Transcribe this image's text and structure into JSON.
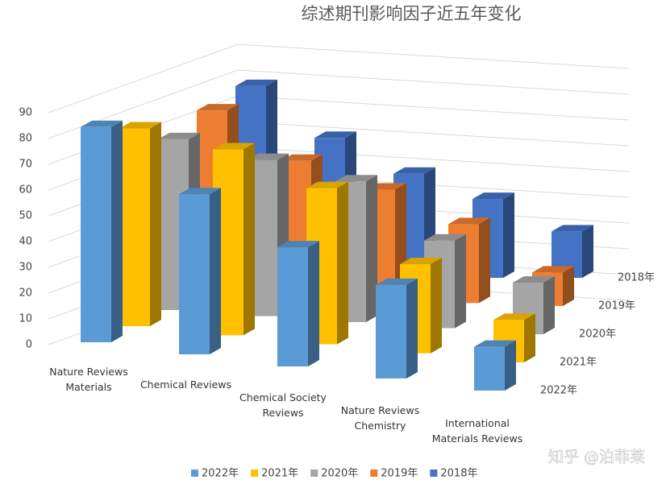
{
  "chart_data": {
    "type": "bar3d",
    "title": "综述期刊影响因子近五年变化",
    "categories": [
      "Nature Reviews Materials",
      "Chemical Reviews",
      "Chemical Society Reviews",
      "Nature Reviews Chemistry",
      "International Materials Reviews"
    ],
    "series": [
      {
        "name": "2022年",
        "color": "#5b9bd5",
        "values": [
          83.5,
          62.1,
          46.2,
          36.3,
          17.0
        ]
      },
      {
        "name": "2021年",
        "color": "#ffc000",
        "values": [
          76.7,
          72.1,
          60.6,
          34.6,
          16.5
        ]
      },
      {
        "name": "2020年",
        "color": "#a5a5a5",
        "values": [
          66.3,
          60.6,
          54.6,
          34.0,
          20.0
        ]
      },
      {
        "name": "2019年",
        "color": "#ed7d31",
        "values": [
          71.2,
          52.8,
          42.8,
          30.6,
          13.0
        ]
      },
      {
        "name": "2018年",
        "color": "#4472c4",
        "values": [
          74.4,
          54.3,
          40.4,
          30.6,
          18.0
        ]
      }
    ],
    "ylim": [
      0,
      90
    ],
    "yticks": [
      0,
      10,
      20,
      30,
      40,
      50,
      60,
      70,
      80,
      90
    ],
    "grid": true,
    "legend": "bottom",
    "watermark": "知乎 @泊菲莱"
  }
}
